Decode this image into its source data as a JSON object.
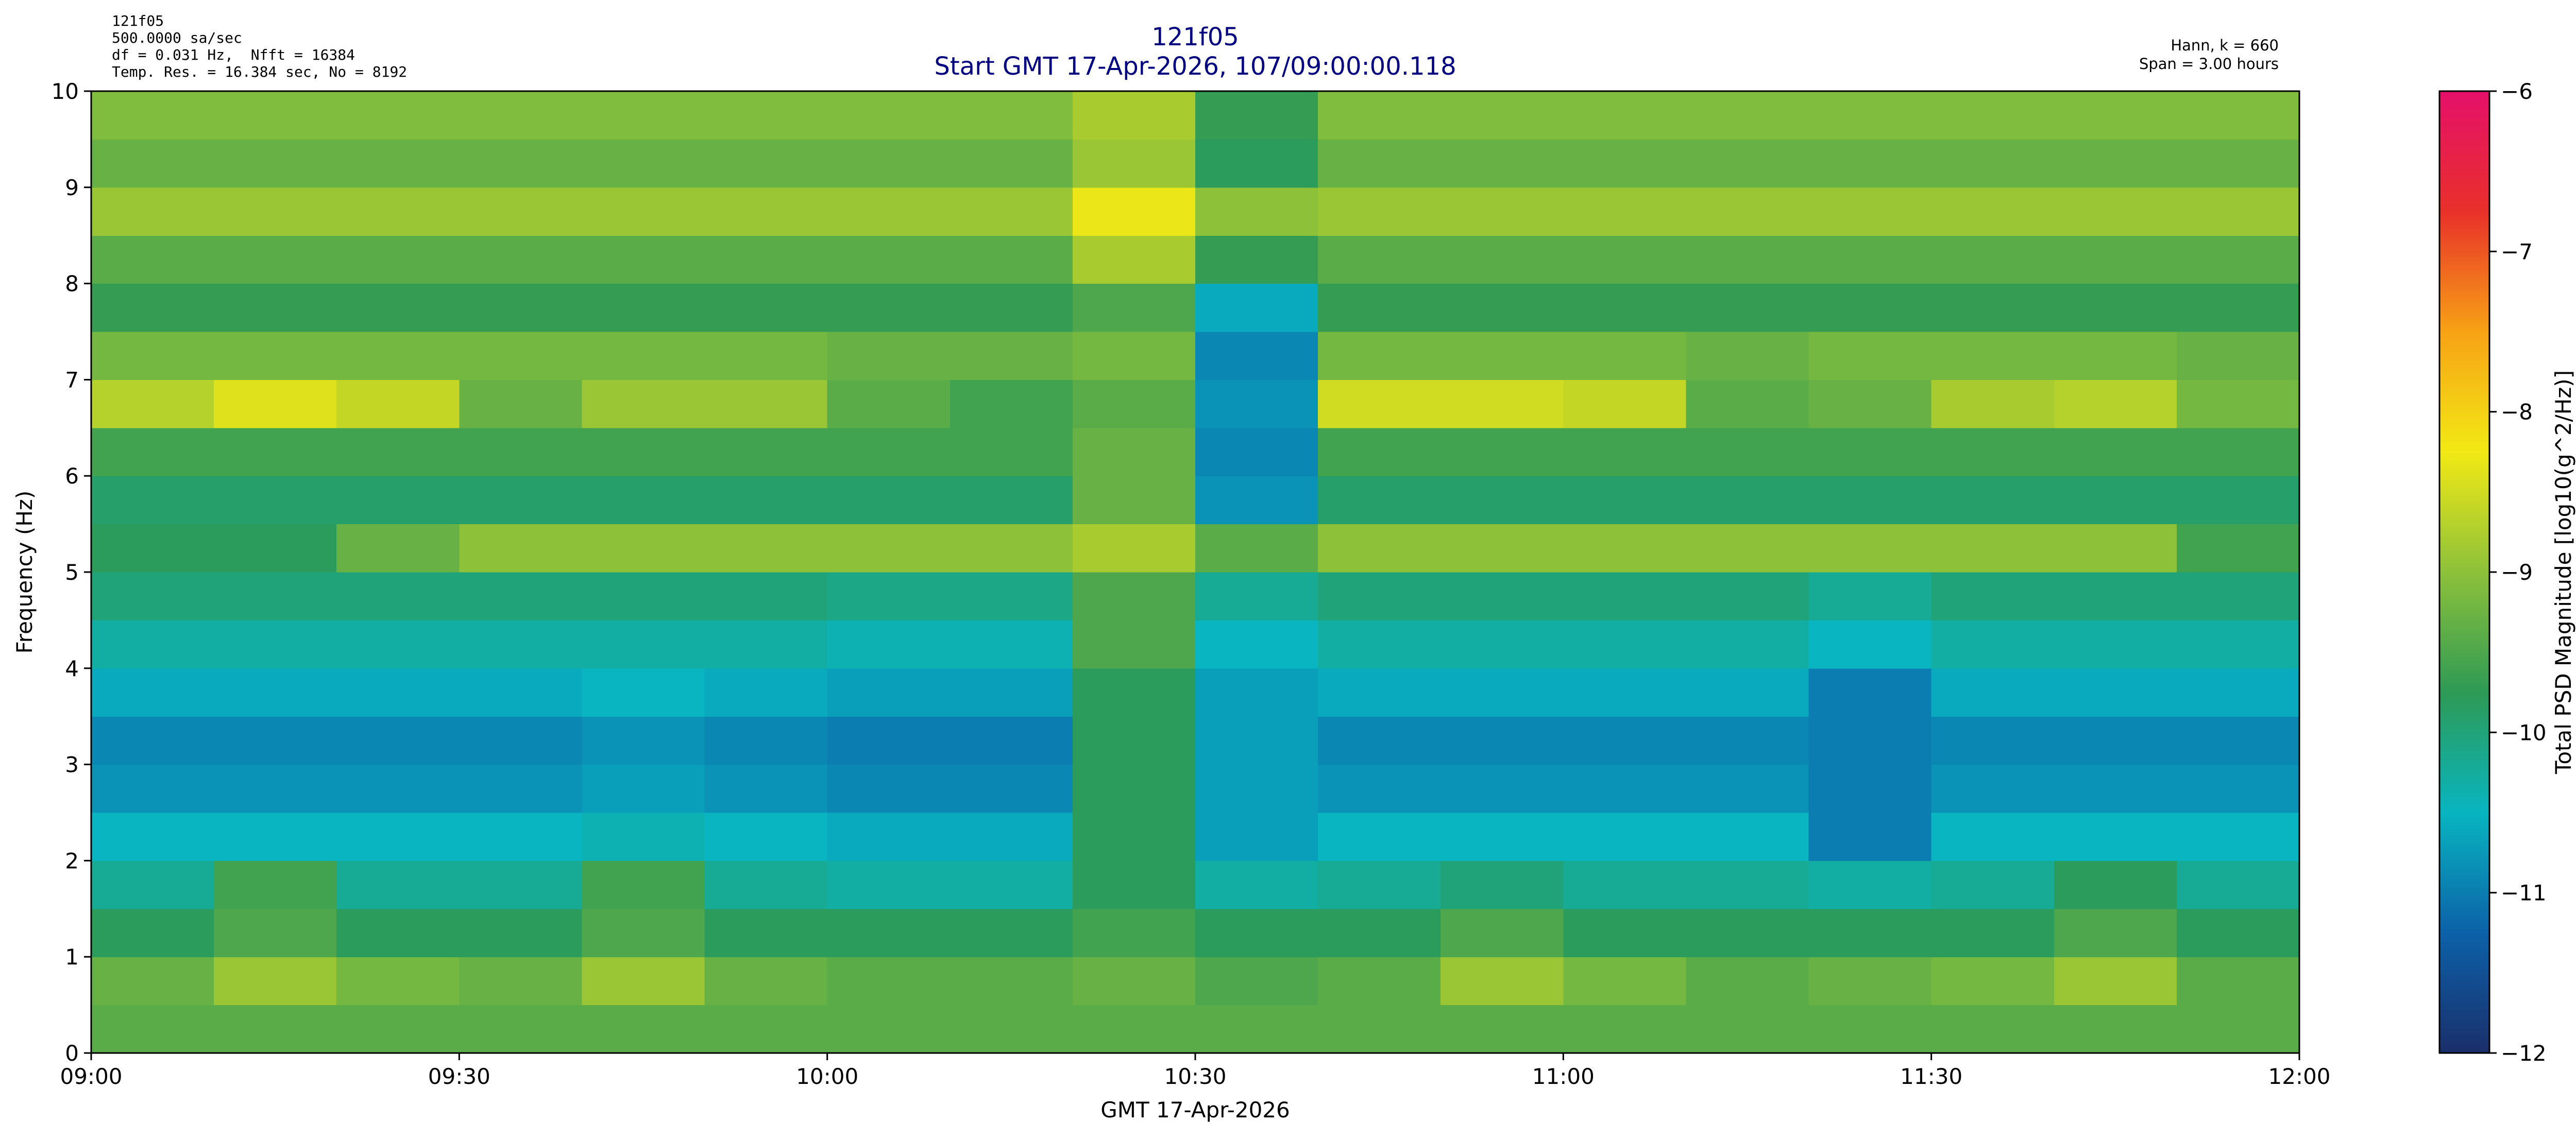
{
  "chart_data": {
    "type": "heatmap",
    "header_left": [
      "121f05",
      "500.0000 sa/sec",
      "df = 0.031 Hz,  Nfft = 16384",
      "Temp. Res. = 16.384 sec, No = 8192"
    ],
    "title": "121f05",
    "subtitle": "Start GMT 17-Apr-2026, 107/09:00:00.118",
    "header_right": [
      "Hann, k = 660",
      "Span = 3.00 hours"
    ],
    "x_label": "GMT 17-Apr-2026",
    "y_label": "Frequency (Hz)",
    "colorbar_label": "Total PSD Magnitude [log10(g^2/Hz)]",
    "xlim": [
      "09:00",
      "12:00"
    ],
    "xticks": [
      "09:00",
      "09:30",
      "10:00",
      "10:30",
      "11:00",
      "11:30",
      "12:00"
    ],
    "ylim": [
      0,
      10
    ],
    "yticks": [
      0,
      1,
      2,
      3,
      4,
      5,
      6,
      7,
      8,
      9,
      10
    ],
    "clim": [
      -12,
      -6
    ],
    "cticks": [
      {
        "value": -12,
        "label": "−12"
      },
      {
        "value": -11,
        "label": "−11"
      },
      {
        "value": -10,
        "label": "−10"
      },
      {
        "value": -9,
        "label": "−9"
      },
      {
        "value": -8,
        "label": "−8"
      },
      {
        "value": -7,
        "label": "−7"
      },
      {
        "value": -6,
        "label": "−6"
      }
    ],
    "colormap": [
      "#1a2f6b",
      "#0c61a8",
      "#08b5c0",
      "#2e9a55",
      "#8dc13a",
      "#f2e915",
      "#f7a215",
      "#e8302a",
      "#e5106a"
    ],
    "z": [
      [
        -9.4,
        -9.4,
        -9.4,
        -9.4,
        -9.4,
        -9.4,
        -9.4,
        -9.4,
        -9.4,
        -9.4,
        -9.4,
        -9.4,
        -9.4,
        -9.4,
        -9.4,
        -9.4,
        -9.4,
        -9.4
      ],
      [
        -9.3,
        -8.9,
        -9.2,
        -9.3,
        -8.9,
        -9.3,
        -9.4,
        -9.4,
        -9.3,
        -9.5,
        -9.4,
        -8.9,
        -9.2,
        -9.4,
        -9.3,
        -9.2,
        -8.9,
        -9.4
      ],
      [
        -9.8,
        -9.5,
        -9.8,
        -9.8,
        -9.5,
        -9.8,
        -9.8,
        -9.8,
        -9.6,
        -9.8,
        -9.8,
        -9.5,
        -9.8,
        -9.8,
        -9.8,
        -9.8,
        -9.5,
        -9.8
      ],
      [
        -10.2,
        -9.6,
        -10.2,
        -10.2,
        -9.6,
        -10.2,
        -10.3,
        -10.3,
        -9.8,
        -10.3,
        -10.2,
        -10.0,
        -10.2,
        -10.2,
        -10.3,
        -10.2,
        -9.8,
        -10.2
      ],
      [
        -10.5,
        -10.5,
        -10.5,
        -10.5,
        -10.4,
        -10.5,
        -10.6,
        -10.6,
        -9.8,
        -10.7,
        -10.5,
        -10.5,
        -10.5,
        -10.5,
        -11.0,
        -10.5,
        -10.5,
        -10.5
      ],
      [
        -10.8,
        -10.8,
        -10.8,
        -10.8,
        -10.7,
        -10.8,
        -10.9,
        -10.9,
        -9.8,
        -10.7,
        -10.8,
        -10.8,
        -10.8,
        -10.8,
        -11.0,
        -10.8,
        -10.8,
        -10.8
      ],
      [
        -10.9,
        -10.9,
        -10.9,
        -10.9,
        -10.8,
        -10.9,
        -11.0,
        -11.0,
        -9.8,
        -10.7,
        -10.9,
        -10.9,
        -10.9,
        -10.9,
        -11.0,
        -10.9,
        -10.9,
        -10.9
      ],
      [
        -10.6,
        -10.6,
        -10.6,
        -10.6,
        -10.5,
        -10.6,
        -10.7,
        -10.7,
        -9.8,
        -10.7,
        -10.6,
        -10.6,
        -10.6,
        -10.6,
        -11.0,
        -10.6,
        -10.6,
        -10.6
      ],
      [
        -10.3,
        -10.3,
        -10.3,
        -10.3,
        -10.3,
        -10.3,
        -10.4,
        -10.4,
        -9.5,
        -10.5,
        -10.3,
        -10.3,
        -10.3,
        -10.3,
        -10.5,
        -10.3,
        -10.3,
        -10.3
      ],
      [
        -10.0,
        -10.0,
        -10.0,
        -10.0,
        -10.0,
        -10.0,
        -10.1,
        -10.1,
        -9.5,
        -10.2,
        -10.0,
        -10.0,
        -10.0,
        -10.0,
        -10.2,
        -10.0,
        -10.0,
        -10.0
      ],
      [
        -9.8,
        -9.8,
        -9.3,
        -9.0,
        -9.0,
        -9.0,
        -9.0,
        -9.0,
        -8.8,
        -9.4,
        -9.0,
        -9.0,
        -9.0,
        -9.0,
        -9.0,
        -9.0,
        -9.0,
        -9.6
      ],
      [
        -9.9,
        -9.9,
        -9.9,
        -9.9,
        -9.9,
        -9.9,
        -9.9,
        -9.9,
        -9.3,
        -10.8,
        -9.9,
        -9.9,
        -9.9,
        -9.9,
        -9.9,
        -9.9,
        -9.9,
        -9.9
      ],
      [
        -9.6,
        -9.6,
        -9.6,
        -9.6,
        -9.6,
        -9.6,
        -9.6,
        -9.6,
        -9.3,
        -10.9,
        -9.6,
        -9.6,
        -9.6,
        -9.6,
        -9.6,
        -9.6,
        -9.6,
        -9.6
      ],
      [
        -8.7,
        -8.4,
        -8.6,
        -9.3,
        -8.9,
        -8.9,
        -9.4,
        -9.6,
        -9.4,
        -10.8,
        -8.5,
        -8.5,
        -8.6,
        -9.4,
        -9.3,
        -8.8,
        -8.7,
        -9.2
      ],
      [
        -9.2,
        -9.2,
        -9.2,
        -9.2,
        -9.2,
        -9.2,
        -9.3,
        -9.3,
        -9.2,
        -10.9,
        -9.2,
        -9.2,
        -9.2,
        -9.3,
        -9.2,
        -9.2,
        -9.2,
        -9.3
      ],
      [
        -9.7,
        -9.7,
        -9.7,
        -9.7,
        -9.7,
        -9.7,
        -9.7,
        -9.7,
        -9.5,
        -10.6,
        -9.7,
        -9.7,
        -9.7,
        -9.7,
        -9.7,
        -9.7,
        -9.7,
        -9.7
      ],
      [
        -9.4,
        -9.4,
        -9.4,
        -9.4,
        -9.4,
        -9.4,
        -9.4,
        -9.4,
        -8.8,
        -9.7,
        -9.4,
        -9.4,
        -9.4,
        -9.4,
        -9.4,
        -9.4,
        -9.4,
        -9.4
      ],
      [
        -8.9,
        -8.9,
        -8.9,
        -8.9,
        -8.9,
        -8.9,
        -8.9,
        -8.9,
        -8.3,
        -9.0,
        -8.9,
        -8.9,
        -8.9,
        -8.9,
        -8.9,
        -8.9,
        -8.9,
        -8.9
      ],
      [
        -9.3,
        -9.3,
        -9.3,
        -9.3,
        -9.3,
        -9.3,
        -9.3,
        -9.3,
        -8.9,
        -9.8,
        -9.3,
        -9.3,
        -9.3,
        -9.3,
        -9.3,
        -9.3,
        -9.3,
        -9.3
      ],
      [
        -9.1,
        -9.1,
        -9.1,
        -9.1,
        -9.1,
        -9.1,
        -9.1,
        -9.1,
        -8.8,
        -9.7,
        -9.1,
        -9.1,
        -9.1,
        -9.1,
        -9.1,
        -9.1,
        -9.1,
        -9.1
      ]
    ]
  }
}
